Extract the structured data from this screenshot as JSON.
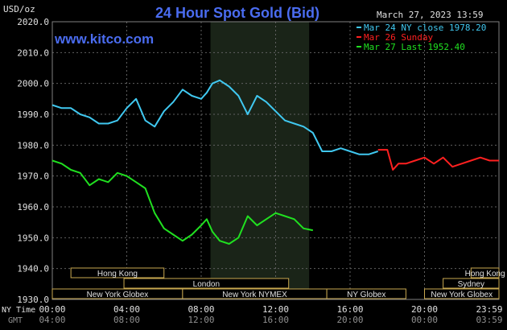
{
  "header": {
    "title": "24 Hour Spot Gold (Bid)",
    "site": "www.kitco.com",
    "unit": "USD/oz",
    "timestamp": "March 27, 2023 13:59"
  },
  "legend": [
    {
      "label": "Mar 24 NY close 1978.20",
      "color": "#40c8f0"
    },
    {
      "label": "Mar 26 Sunday",
      "color": "#ff2020"
    },
    {
      "label": "Mar 27 Last 1952.40",
      "color": "#20e020"
    }
  ],
  "axis": {
    "y_ticks": [
      "2020.0",
      "2010.0",
      "2000.0",
      "1990.0",
      "1980.0",
      "1970.0",
      "1960.0",
      "1950.0",
      "1940.0",
      "1930.0"
    ],
    "x_ticks_ny": [
      "00:00",
      "04:00",
      "08:00",
      "12:00",
      "16:00",
      "20:00",
      "23:59"
    ],
    "x_ticks_gmt": [
      "04:00",
      "08:00",
      "12:00",
      "16:00",
      "20:00",
      "00:00",
      "03:59"
    ],
    "ny_time_label": "NY Time",
    "gmt_label": "GMT"
  },
  "sessions": [
    {
      "label": "Hong Kong",
      "row": 0,
      "start": 1.0,
      "end": 6.0
    },
    {
      "label": "Hong Kong",
      "row": 0,
      "start": 22.5,
      "end": 26.0
    },
    {
      "label": "London",
      "row": 1,
      "start": 3.85,
      "end": 12.7
    },
    {
      "label": "Sydney",
      "row": 1,
      "start": 21.0,
      "end": 26.0
    },
    {
      "label": "New York Globex",
      "row": 2,
      "start": 0.0,
      "end": 7.0
    },
    {
      "label": "New York NYMEX",
      "row": 2,
      "start": 7.0,
      "end": 14.75
    },
    {
      "label": "NY Globex",
      "row": 2,
      "start": 14.75,
      "end": 19.0
    },
    {
      "label": "New York Globex",
      "row": 2,
      "start": 20.0,
      "end": 26.0
    }
  ],
  "chart_data": {
    "type": "line",
    "title": "24 Hour Spot Gold (Bid)",
    "ylabel": "USD/oz",
    "xlabel": "NY Time",
    "ylim": [
      1930,
      2020
    ],
    "xlim_hours": [
      0,
      24
    ],
    "grid": true,
    "legend_position": "top-right",
    "highlight_region_hours": [
      8.5,
      13.8
    ],
    "series": [
      {
        "name": "Mar 24 NY close 1978.20",
        "color": "#40c8f0",
        "x": [
          0,
          0.5,
          1.0,
          1.5,
          2.0,
          2.5,
          3.0,
          3.5,
          4.0,
          4.5,
          5.0,
          5.5,
          6.0,
          6.5,
          7.0,
          7.5,
          8.0,
          8.3,
          8.6,
          9.0,
          9.5,
          10.0,
          10.5,
          11.0,
          11.5,
          12.0,
          12.5,
          13.0,
          13.5,
          14.0,
          14.5,
          15.0,
          15.5,
          16.0,
          16.5,
          17.0,
          17.5
        ],
        "y": [
          1993,
          1992,
          1992,
          1990,
          1989,
          1987,
          1987,
          1988,
          1992,
          1995,
          1988,
          1986,
          1991,
          1994,
          1998,
          1996,
          1995,
          1997,
          2000,
          2001,
          1999,
          1996,
          1990,
          1996,
          1994,
          1991,
          1988,
          1987,
          1986,
          1984,
          1978,
          1978,
          1979,
          1978,
          1977,
          1977,
          1978
        ]
      },
      {
        "name": "Mar 26 Sunday",
        "color": "#ff2020",
        "x": [
          17.5,
          18.0,
          18.3,
          18.6,
          19.0,
          19.5,
          20.0,
          20.5,
          21.0,
          21.5,
          22.0,
          22.5,
          23.0,
          23.5,
          24.0
        ],
        "y": [
          1978.5,
          1978.5,
          1972,
          1974,
          1974,
          1975,
          1976,
          1974,
          1976,
          1973,
          1974,
          1975,
          1976,
          1975,
          1975
        ]
      },
      {
        "name": "Mar 27 Last 1952.40",
        "color": "#20e020",
        "x": [
          0,
          0.5,
          1.0,
          1.5,
          2.0,
          2.5,
          3.0,
          3.5,
          4.0,
          4.5,
          5.0,
          5.5,
          6.0,
          6.5,
          7.0,
          7.5,
          8.0,
          8.3,
          8.6,
          9.0,
          9.5,
          10.0,
          10.5,
          11.0,
          11.5,
          12.0,
          12.5,
          13.0,
          13.5,
          14.0
        ],
        "y": [
          1975,
          1974,
          1972,
          1971,
          1967,
          1969,
          1968,
          1971,
          1970,
          1968,
          1966,
          1958,
          1953,
          1951,
          1949,
          1951,
          1954,
          1956,
          1952,
          1949,
          1948,
          1950,
          1957,
          1954,
          1956,
          1958,
          1957,
          1956,
          1953,
          1952.4
        ]
      }
    ]
  }
}
